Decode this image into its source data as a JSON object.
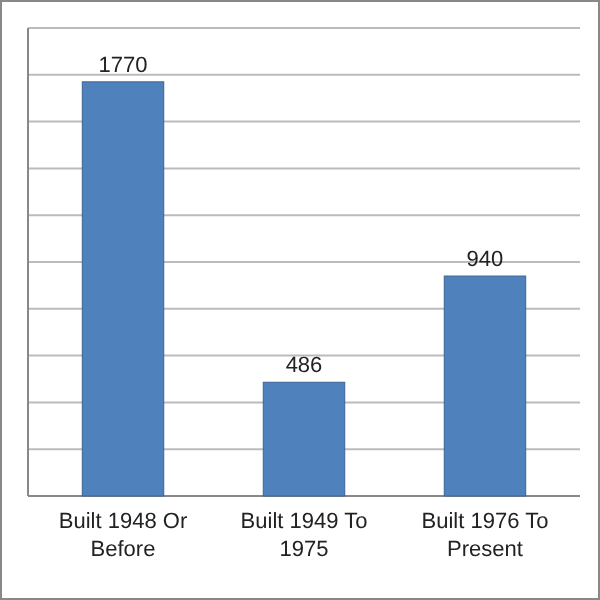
{
  "chart_data": {
    "type": "bar",
    "categories": [
      "Built 1948 Or Before",
      "Built 1949 To 1975",
      "Built 1976 To Present"
    ],
    "values": [
      1770,
      486,
      940
    ],
    "color": "#4f81bd",
    "data_labels": true,
    "ylim": [
      0,
      2000
    ],
    "yticks": [
      {
        "value": 0,
        "label": null
      },
      {
        "value": 200,
        "label": null
      },
      {
        "value": 400,
        "label": null
      },
      {
        "value": 600,
        "label": null
      },
      {
        "value": 800,
        "label": null
      },
      {
        "value": 1000,
        "label": null
      },
      {
        "value": 1200,
        "label": null
      },
      {
        "value": 1400,
        "label": null
      },
      {
        "value": 1600,
        "label": null
      },
      {
        "value": 1800,
        "label": null
      },
      {
        "value": 2000,
        "label": null
      }
    ],
    "grid": "y",
    "tick_labels": "x"
  }
}
